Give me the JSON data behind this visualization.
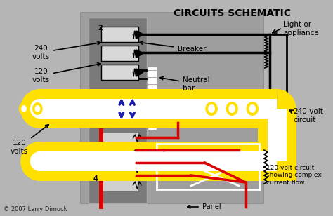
{
  "title": "CIRCUITS SCHEMATIC",
  "bg_color": "#b5b5b5",
  "panel_bg": "#9e9e9e",
  "copyright": "© 2007 Larry Dimock",
  "yellow": "#FFE000",
  "white": "#FFFFFF",
  "red": "#DD0000",
  "black": "#000000",
  "blue": "#1a1aaa",
  "dark_panel": "#7a7a7a",
  "breaker_fill": "#cccccc",
  "labels": {
    "240v": "240\nvolts",
    "120v_top": "120\nvolts",
    "120v_bot": "120\nvolts",
    "breaker": "Breaker",
    "neutral": "Neutral\nbar",
    "light": "Light or\nappliance",
    "v240": "240-volt\ncircuit",
    "v120": "120-volt circuit\nshowing complex\ncurrent flow",
    "panel": "Panel",
    "n2": "2",
    "n4": "4"
  }
}
